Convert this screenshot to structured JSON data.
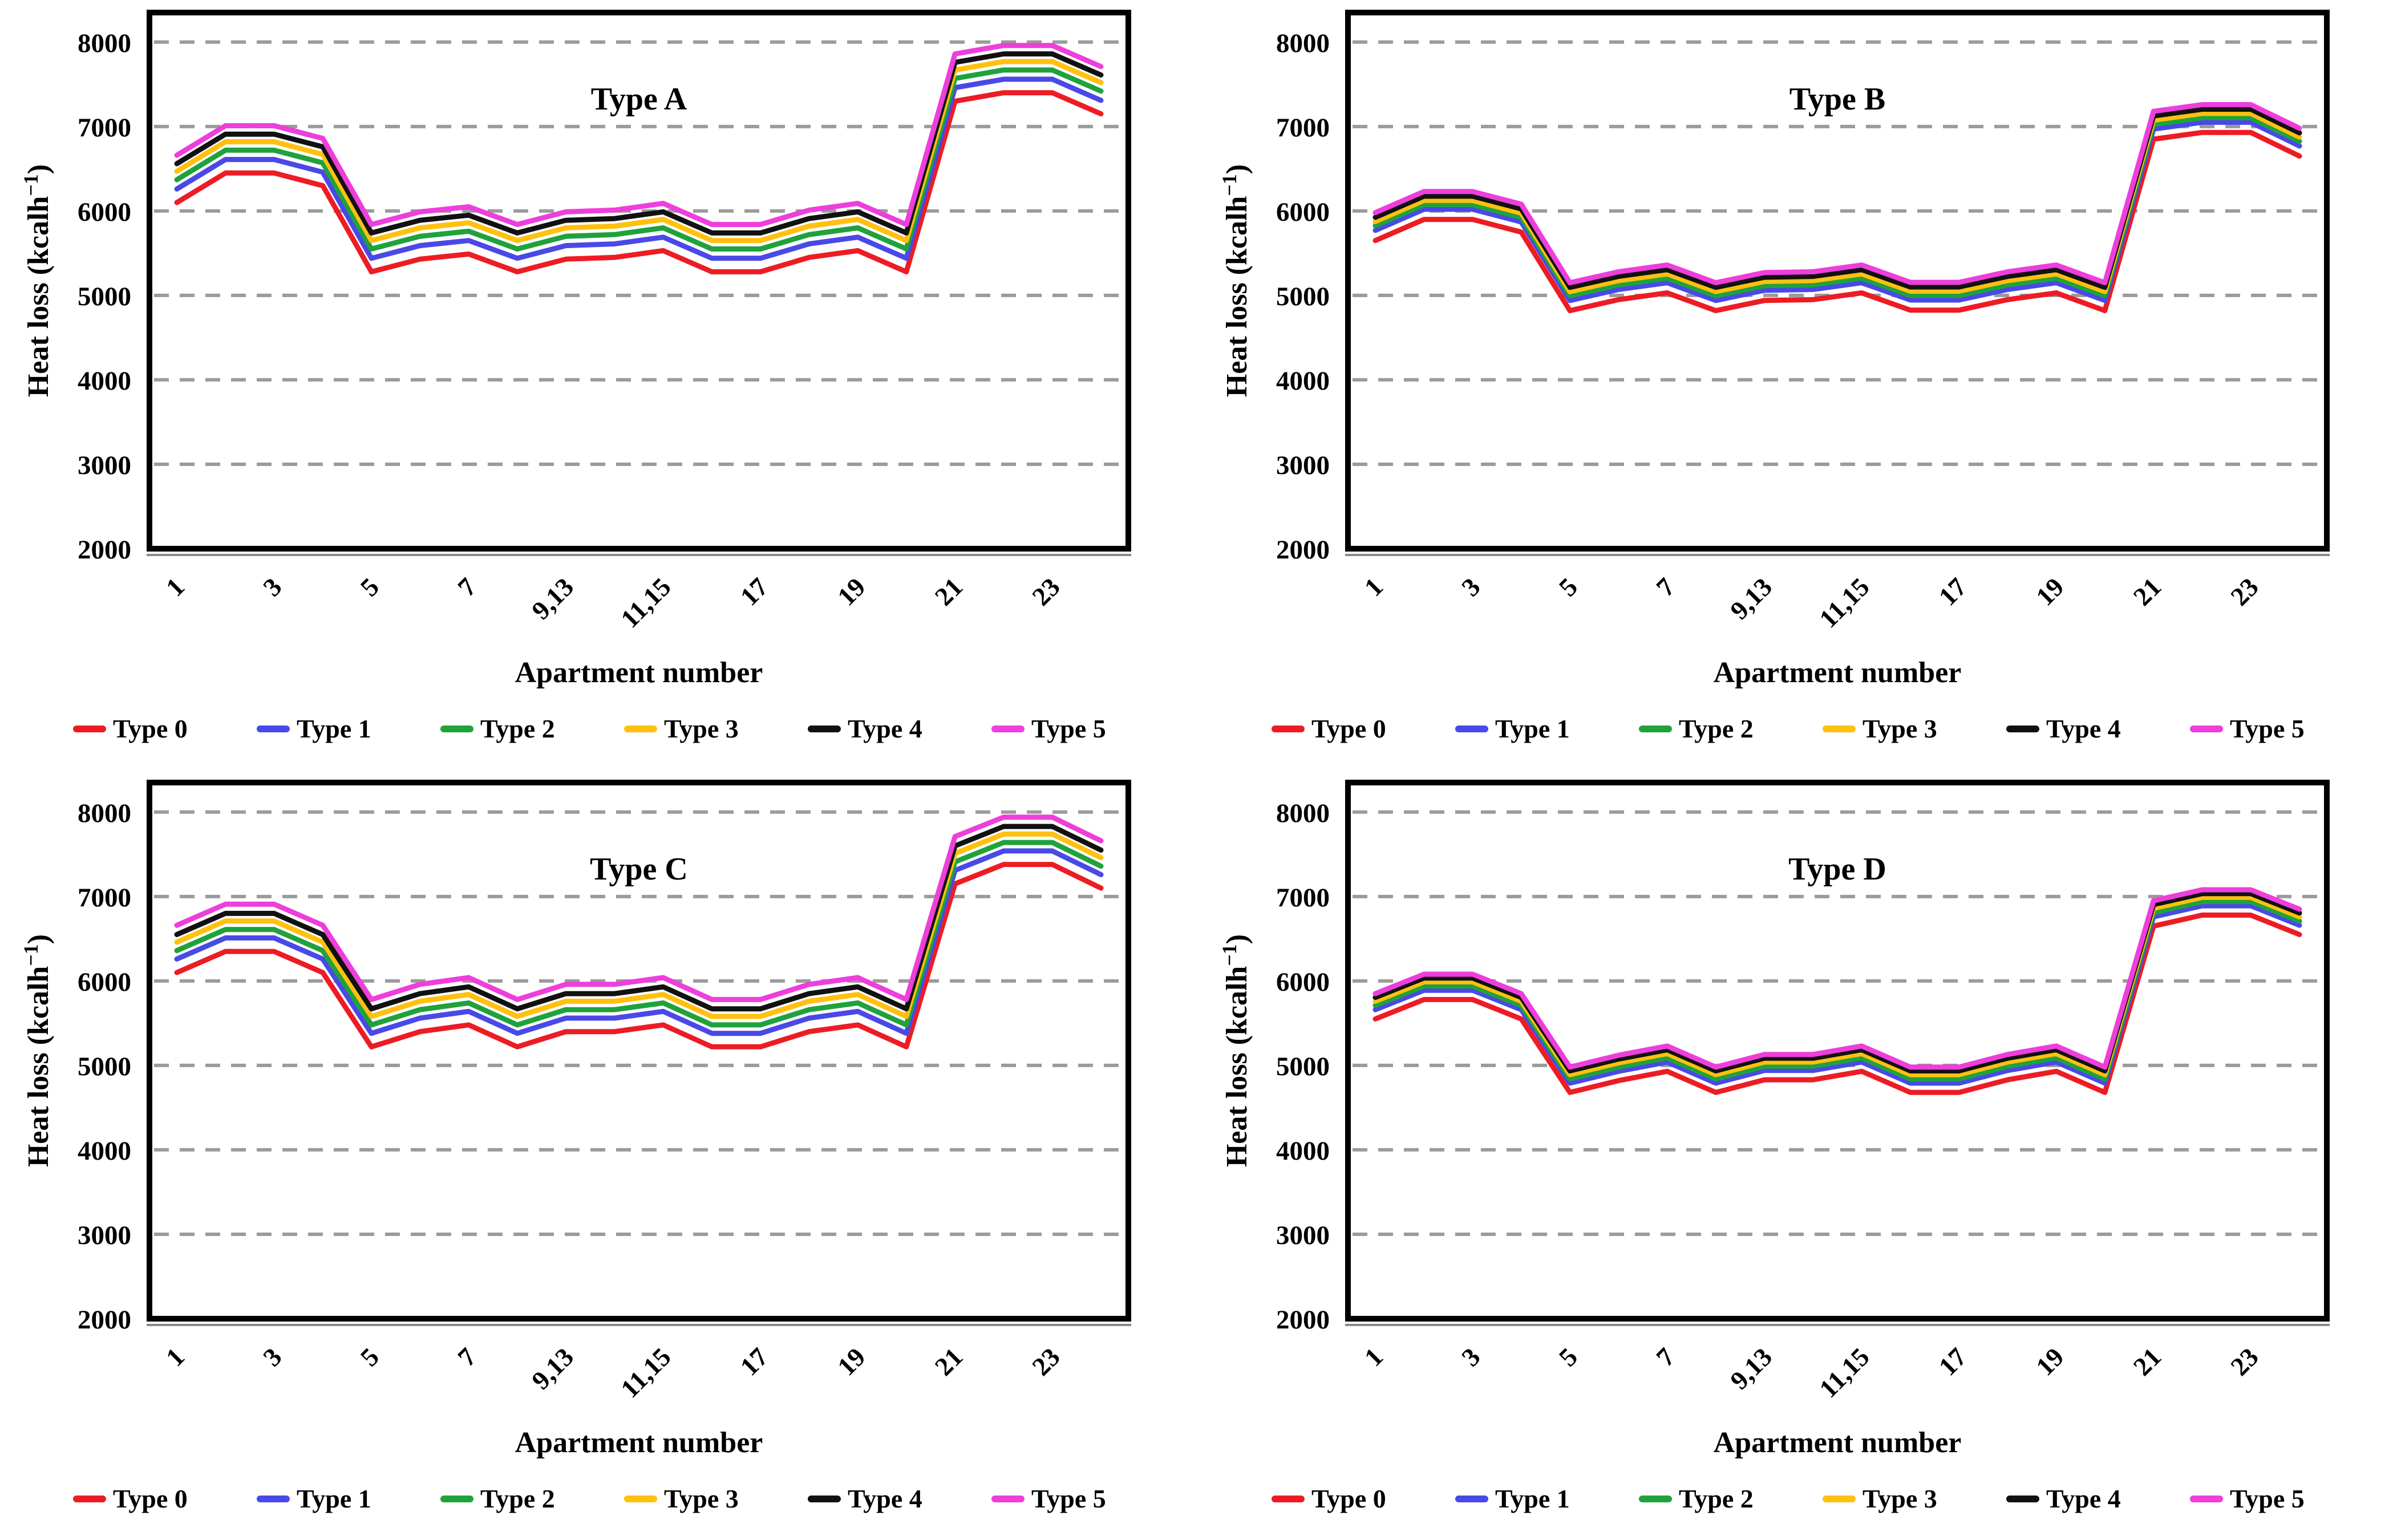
{
  "figure": {
    "background": "#FFFFFF",
    "grid_color": "#9B9B9B",
    "axis_color": "#000000"
  },
  "legend": {
    "position": "bottom",
    "entries": [
      {
        "label": "Type 0",
        "color": "#ED1C24"
      },
      {
        "label": "Type 1",
        "color": "#4949E7"
      },
      {
        "label": "Type 2",
        "color": "#1FA23C"
      },
      {
        "label": "Type 3",
        "color": "#FFC010"
      },
      {
        "label": "Type 4",
        "color": "#111111"
      },
      {
        "label": "Type 5",
        "color": "#EE3EDC"
      }
    ]
  },
  "chart_data": [
    {
      "type": "line",
      "title": "Type A",
      "xlabel": "Apartment number",
      "ylabel": {
        "pre": "Heat loss (kcalh",
        "sup": "−1",
        "post": ")"
      },
      "x_tick_labels": [
        "1",
        "3",
        "5",
        "7",
        "9,13",
        "11,15",
        "17",
        "19",
        "21",
        "23"
      ],
      "yticks": [
        2000,
        3000,
        4000,
        5000,
        6000,
        7000,
        8000
      ],
      "ylim": [
        2000,
        8000
      ],
      "grid": "dashed-horizontal",
      "legend_position": "bottom",
      "series": [
        {
          "name": "Type 0",
          "color": "#ED1C24",
          "values": [
            6100,
            6450,
            6450,
            6300,
            5280,
            5430,
            5490,
            5280,
            5430,
            5450,
            5530,
            5280,
            5280,
            5450,
            5530,
            5280,
            7300,
            7400,
            7400,
            7150
          ]
        },
        {
          "name": "Type 1",
          "color": "#4949E7",
          "values": [
            6260,
            6610,
            6610,
            6460,
            5440,
            5590,
            5650,
            5440,
            5590,
            5610,
            5690,
            5440,
            5440,
            5610,
            5690,
            5440,
            7460,
            7560,
            7560,
            7310
          ]
        },
        {
          "name": "Type 2",
          "color": "#1FA23C",
          "values": [
            6370,
            6720,
            6720,
            6570,
            5550,
            5700,
            5760,
            5550,
            5700,
            5720,
            5800,
            5550,
            5550,
            5720,
            5800,
            5550,
            7570,
            7670,
            7670,
            7420
          ]
        },
        {
          "name": "Type 3",
          "color": "#FFC010",
          "values": [
            6470,
            6820,
            6820,
            6670,
            5650,
            5800,
            5860,
            5650,
            5800,
            5820,
            5900,
            5650,
            5650,
            5820,
            5900,
            5650,
            7670,
            7770,
            7770,
            7520
          ]
        },
        {
          "name": "Type 4",
          "color": "#111111",
          "values": [
            6560,
            6910,
            6910,
            6760,
            5740,
            5890,
            5950,
            5740,
            5890,
            5910,
            5990,
            5740,
            5740,
            5910,
            5990,
            5740,
            7760,
            7860,
            7860,
            7610
          ]
        },
        {
          "name": "Type 5",
          "color": "#EE3EDC",
          "values": [
            6660,
            7010,
            7010,
            6860,
            5840,
            5990,
            6050,
            5840,
            5990,
            6010,
            6090,
            5840,
            5840,
            6010,
            6090,
            5840,
            7860,
            7960,
            7960,
            7710
          ]
        }
      ]
    },
    {
      "type": "line",
      "title": "Type B",
      "xlabel": "Apartment number",
      "ylabel": {
        "pre": "Heat loss (kcalh",
        "sup": "−1",
        "post": ")"
      },
      "x_tick_labels": [
        "1",
        "3",
        "5",
        "7",
        "9,13",
        "11,15",
        "17",
        "19",
        "21",
        "23"
      ],
      "yticks": [
        2000,
        3000,
        4000,
        5000,
        6000,
        7000,
        8000
      ],
      "ylim": [
        2000,
        8000
      ],
      "grid": "dashed-horizontal",
      "legend_position": "bottom",
      "series": [
        {
          "name": "Type 0",
          "color": "#ED1C24",
          "values": [
            5650,
            5900,
            5900,
            5750,
            4820,
            4950,
            5030,
            4820,
            4940,
            4950,
            5030,
            4825,
            4825,
            4950,
            5030,
            4820,
            6850,
            6930,
            6930,
            6650
          ]
        },
        {
          "name": "Type 1",
          "color": "#4949E7",
          "values": [
            5770,
            6020,
            6020,
            5870,
            4940,
            5070,
            5150,
            4940,
            5060,
            5070,
            5150,
            4945,
            4945,
            5070,
            5150,
            4940,
            6970,
            7050,
            7050,
            6770
          ]
        },
        {
          "name": "Type 2",
          "color": "#1FA23C",
          "values": [
            5825,
            6075,
            6075,
            5925,
            4995,
            5125,
            5205,
            4995,
            5115,
            5125,
            5205,
            5000,
            5000,
            5125,
            5205,
            4995,
            7025,
            7105,
            7105,
            6825
          ]
        },
        {
          "name": "Type 3",
          "color": "#FFC010",
          "values": [
            5875,
            6125,
            6125,
            5975,
            5045,
            5175,
            5255,
            5045,
            5165,
            5175,
            5255,
            5050,
            5050,
            5175,
            5255,
            5045,
            7075,
            7155,
            7155,
            6875
          ]
        },
        {
          "name": "Type 4",
          "color": "#111111",
          "values": [
            5925,
            6175,
            6175,
            6025,
            5095,
            5225,
            5305,
            5095,
            5215,
            5225,
            5305,
            5100,
            5100,
            5225,
            5305,
            5095,
            7125,
            7205,
            7205,
            6925
          ]
        },
        {
          "name": "Type 5",
          "color": "#EE3EDC",
          "values": [
            5980,
            6230,
            6230,
            6080,
            5150,
            5280,
            5360,
            5150,
            5270,
            5280,
            5360,
            5155,
            5155,
            5280,
            5360,
            5150,
            7180,
            7260,
            7260,
            6980
          ]
        }
      ]
    },
    {
      "type": "line",
      "title": "Type C",
      "xlabel": "Apartment number",
      "ylabel": {
        "pre": "Heat loss (kcalh",
        "sup": "−1",
        "post": ")"
      },
      "x_tick_labels": [
        "1",
        "3",
        "5",
        "7",
        "9,13",
        "11,15",
        "17",
        "19",
        "21",
        "23"
      ],
      "yticks": [
        2000,
        3000,
        4000,
        5000,
        6000,
        7000,
        8000
      ],
      "ylim": [
        2000,
        8000
      ],
      "grid": "dashed-horizontal",
      "legend_position": "bottom",
      "series": [
        {
          "name": "Type 0",
          "color": "#ED1C24",
          "values": [
            6100,
            6350,
            6350,
            6100,
            5220,
            5400,
            5480,
            5220,
            5400,
            5400,
            5480,
            5220,
            5220,
            5400,
            5480,
            5220,
            7150,
            7380,
            7380,
            7100
          ]
        },
        {
          "name": "Type 1",
          "color": "#4949E7",
          "values": [
            6260,
            6510,
            6510,
            6260,
            5380,
            5560,
            5640,
            5380,
            5560,
            5560,
            5640,
            5380,
            5380,
            5560,
            5640,
            5380,
            7310,
            7540,
            7540,
            7260
          ]
        },
        {
          "name": "Type 2",
          "color": "#1FA23C",
          "values": [
            6360,
            6610,
            6610,
            6360,
            5480,
            5660,
            5740,
            5480,
            5660,
            5660,
            5740,
            5480,
            5480,
            5660,
            5740,
            5480,
            7410,
            7640,
            7640,
            7360
          ]
        },
        {
          "name": "Type 3",
          "color": "#FFC010",
          "values": [
            6460,
            6710,
            6710,
            6460,
            5580,
            5760,
            5840,
            5580,
            5760,
            5760,
            5840,
            5580,
            5580,
            5760,
            5840,
            5580,
            7510,
            7740,
            7740,
            7460
          ]
        },
        {
          "name": "Type 4",
          "color": "#111111",
          "values": [
            6550,
            6800,
            6800,
            6550,
            5670,
            5850,
            5930,
            5670,
            5850,
            5850,
            5930,
            5670,
            5670,
            5850,
            5930,
            5670,
            7600,
            7830,
            7830,
            7550
          ]
        },
        {
          "name": "Type 5",
          "color": "#EE3EDC",
          "values": [
            6660,
            6910,
            6910,
            6660,
            5780,
            5960,
            6040,
            5780,
            5960,
            5960,
            6040,
            5780,
            5780,
            5960,
            6040,
            5780,
            7710,
            7940,
            7940,
            7660
          ]
        }
      ]
    },
    {
      "type": "line",
      "title": "Type D",
      "xlabel": "Apartment number",
      "ylabel": {
        "pre": "Heat loss (kcalh",
        "sup": "−1",
        "post": ")"
      },
      "x_tick_labels": [
        "1",
        "3",
        "5",
        "7",
        "9,13",
        "11,15",
        "17",
        "19",
        "21",
        "23"
      ],
      "yticks": [
        2000,
        3000,
        4000,
        5000,
        6000,
        7000,
        8000
      ],
      "ylim": [
        2000,
        8000
      ],
      "grid": "dashed-horizontal",
      "legend_position": "bottom",
      "series": [
        {
          "name": "Type 0",
          "color": "#ED1C24",
          "values": [
            5550,
            5780,
            5780,
            5550,
            4680,
            4820,
            4930,
            4680,
            4830,
            4830,
            4930,
            4680,
            4680,
            4830,
            4930,
            4680,
            6650,
            6780,
            6780,
            6550
          ]
        },
        {
          "name": "Type 1",
          "color": "#4949E7",
          "values": [
            5660,
            5890,
            5890,
            5660,
            4790,
            4930,
            5040,
            4790,
            4940,
            4940,
            5040,
            4790,
            4790,
            4940,
            5040,
            4790,
            6760,
            6890,
            6890,
            6660
          ]
        },
        {
          "name": "Type 2",
          "color": "#1FA23C",
          "values": [
            5710,
            5940,
            5940,
            5710,
            4840,
            4980,
            5090,
            4840,
            4990,
            4990,
            5090,
            4840,
            4840,
            4990,
            5090,
            4840,
            6810,
            6940,
            6940,
            6710
          ]
        },
        {
          "name": "Type 3",
          "color": "#FFC010",
          "values": [
            5760,
            5990,
            5990,
            5760,
            4890,
            5030,
            5140,
            4890,
            5040,
            5040,
            5140,
            4890,
            4890,
            5040,
            5140,
            4890,
            6860,
            6990,
            6990,
            6760
          ]
        },
        {
          "name": "Type 4",
          "color": "#111111",
          "values": [
            5805,
            6035,
            6035,
            5805,
            4935,
            5075,
            5185,
            4935,
            5085,
            5085,
            5185,
            4935,
            4935,
            5085,
            5185,
            4935,
            6905,
            7035,
            7035,
            6805
          ]
        },
        {
          "name": "Type 5",
          "color": "#EE3EDC",
          "values": [
            5850,
            6080,
            6080,
            5850,
            4980,
            5120,
            5230,
            4980,
            5130,
            5130,
            5230,
            4980,
            4980,
            5130,
            5230,
            4980,
            6950,
            7080,
            7080,
            6850
          ]
        }
      ]
    }
  ]
}
